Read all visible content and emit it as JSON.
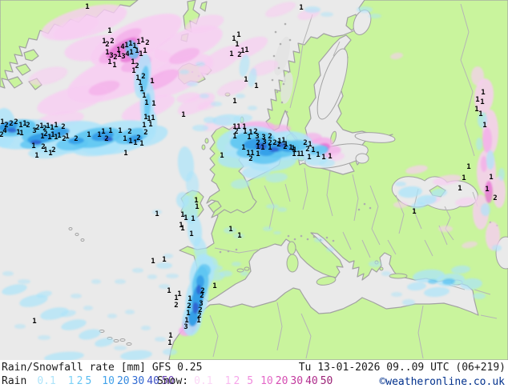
{
  "footer": {
    "title": "Rain/Snowfall rate [mm] GFS 0.25",
    "datetime": "Tu 13-01-2026 09..09 UTC (06+219)",
    "copyright": "©weatheronline.co.uk",
    "copyright_color": "#00308c",
    "rain_label": "Rain",
    "snow_label": "Snow:",
    "rain_scale": [
      {
        "value": "0.1",
        "color": "#aee4fa"
      },
      {
        "value": "1",
        "color": "#7fd3f7"
      },
      {
        "value": "2",
        "color": "#6cc9f5"
      },
      {
        "value": "5",
        "color": "#56bbf1"
      },
      {
        "value": "10",
        "color": "#42a3eb"
      },
      {
        "value": "20",
        "color": "#368ae0"
      },
      {
        "value": "30",
        "color": "#2f6ad2"
      },
      {
        "value": "40",
        "color": "#3b4ec5"
      },
      {
        "value": "50",
        "color": "#6238b2"
      }
    ],
    "snow_scale": [
      {
        "value": "0.1",
        "color": "#fbd7f6"
      },
      {
        "value": "1",
        "color": "#f9baf0"
      },
      {
        "value": "2",
        "color": "#f6a5ea"
      },
      {
        "value": "5",
        "color": "#f08bdd"
      },
      {
        "value": "10",
        "color": "#e569c9"
      },
      {
        "value": "20",
        "color": "#d54db2"
      },
      {
        "value": "30",
        "color": "#c2399e"
      },
      {
        "value": "40",
        "color": "#ae2b8b"
      },
      {
        "value": "50",
        "color": "#9b2377"
      }
    ]
  },
  "map": {
    "palette": {
      "sea": "#eaeaea",
      "land": "#c9f49d",
      "coast": "#a2a2a2",
      "border": "#b5b5b5",
      "highland": "#e2e2e2",
      "terrain": "#aeaeae",
      "snow_light": "#f8cdf2",
      "snow_mid": "#f4aeea",
      "snow_strong": "#e878d6",
      "rain_light": "#abe4fa",
      "rain_mid": "#5ec6f2",
      "rain_strong": "#2f9ae6",
      "rain_heavy": "#2e62d0"
    },
    "numbers": [
      [
        109,
        8,
        "1"
      ],
      [
        137,
        38,
        "1"
      ],
      [
        130,
        51,
        "1"
      ],
      [
        134,
        55,
        "2"
      ],
      [
        140,
        51,
        "2"
      ],
      [
        148,
        62,
        "1"
      ],
      [
        153,
        58,
        "4"
      ],
      [
        158,
        56,
        "1"
      ],
      [
        163,
        54,
        "1"
      ],
      [
        168,
        57,
        "1"
      ],
      [
        173,
        52,
        "1"
      ],
      [
        178,
        50,
        "1"
      ],
      [
        184,
        53,
        "2"
      ],
      [
        134,
        65,
        "1"
      ],
      [
        139,
        69,
        "3"
      ],
      [
        144,
        71,
        "2"
      ],
      [
        149,
        68,
        "1"
      ],
      [
        154,
        70,
        "3"
      ],
      [
        159,
        67,
        "4"
      ],
      [
        164,
        65,
        "1"
      ],
      [
        137,
        77,
        "1"
      ],
      [
        143,
        81,
        "1"
      ],
      [
        171,
        63,
        "1"
      ],
      [
        176,
        67,
        "1"
      ],
      [
        181,
        63,
        "1"
      ],
      [
        166,
        77,
        "1"
      ],
      [
        171,
        82,
        "2"
      ],
      [
        167,
        88,
        "1"
      ],
      [
        172,
        97,
        "1"
      ],
      [
        179,
        95,
        "2"
      ],
      [
        175,
        103,
        "1"
      ],
      [
        190,
        101,
        "1"
      ],
      [
        177,
        111,
        "1"
      ],
      [
        180,
        119,
        "1"
      ],
      [
        183,
        128,
        "1"
      ],
      [
        192,
        129,
        "1"
      ],
      [
        182,
        146,
        "1"
      ],
      [
        186,
        148,
        "1"
      ],
      [
        191,
        147,
        "1"
      ],
      [
        180,
        156,
        "1"
      ],
      [
        188,
        155,
        "1"
      ],
      [
        3,
        152,
        "1"
      ],
      [
        8,
        156,
        "2"
      ],
      [
        14,
        154,
        "2"
      ],
      [
        20,
        152,
        "2"
      ],
      [
        26,
        156,
        "1"
      ],
      [
        31,
        154,
        "1"
      ],
      [
        35,
        156,
        "2"
      ],
      [
        6,
        163,
        "4"
      ],
      [
        2,
        168,
        "2"
      ],
      [
        23,
        165,
        "1"
      ],
      [
        27,
        166,
        "1"
      ],
      [
        43,
        163,
        "3"
      ],
      [
        47,
        159,
        "2"
      ],
      [
        52,
        157,
        "1"
      ],
      [
        56,
        160,
        "2"
      ],
      [
        60,
        157,
        "1"
      ],
      [
        65,
        159,
        "1"
      ],
      [
        70,
        156,
        "1"
      ],
      [
        79,
        158,
        "2"
      ],
      [
        53,
        170,
        "1"
      ],
      [
        57,
        167,
        "2"
      ],
      [
        62,
        171,
        "1"
      ],
      [
        66,
        168,
        "1"
      ],
      [
        70,
        171,
        "1"
      ],
      [
        74,
        169,
        "1"
      ],
      [
        80,
        173,
        "2"
      ],
      [
        84,
        170,
        "1"
      ],
      [
        95,
        173,
        "2"
      ],
      [
        111,
        168,
        "1"
      ],
      [
        42,
        182,
        "1"
      ],
      [
        54,
        183,
        "2"
      ],
      [
        57,
        187,
        "1"
      ],
      [
        63,
        191,
        "1"
      ],
      [
        67,
        187,
        "2"
      ],
      [
        46,
        194,
        "1"
      ],
      [
        124,
        168,
        "1"
      ],
      [
        129,
        164,
        "1"
      ],
      [
        133,
        173,
        "2"
      ],
      [
        138,
        163,
        "1"
      ],
      [
        150,
        163,
        "1"
      ],
      [
        156,
        173,
        "1"
      ],
      [
        162,
        164,
        "2"
      ],
      [
        163,
        176,
        "1"
      ],
      [
        169,
        178,
        "1"
      ],
      [
        173,
        172,
        "2"
      ],
      [
        177,
        179,
        "1"
      ],
      [
        182,
        165,
        "2"
      ],
      [
        157,
        191,
        "1"
      ],
      [
        196,
        267,
        "1"
      ],
      [
        376,
        9,
        "1"
      ],
      [
        298,
        43,
        "1"
      ],
      [
        292,
        48,
        "1"
      ],
      [
        296,
        55,
        "1"
      ],
      [
        303,
        63,
        "1"
      ],
      [
        308,
        62,
        "1"
      ],
      [
        289,
        67,
        "1"
      ],
      [
        299,
        68,
        "2"
      ],
      [
        307,
        99,
        "1"
      ],
      [
        320,
        107,
        "1"
      ],
      [
        293,
        126,
        "1"
      ],
      [
        229,
        143,
        "1"
      ],
      [
        293,
        158,
        "1"
      ],
      [
        298,
        158,
        "1"
      ],
      [
        305,
        158,
        "1"
      ],
      [
        295,
        164,
        "2"
      ],
      [
        306,
        164,
        "1"
      ],
      [
        313,
        165,
        "1"
      ],
      [
        319,
        164,
        "2"
      ],
      [
        293,
        170,
        "1"
      ],
      [
        311,
        171,
        "1"
      ],
      [
        321,
        170,
        "3"
      ],
      [
        329,
        171,
        "3"
      ],
      [
        337,
        170,
        "2"
      ],
      [
        322,
        178,
        "2"
      ],
      [
        330,
        177,
        "3"
      ],
      [
        337,
        178,
        "2"
      ],
      [
        343,
        178,
        "2"
      ],
      [
        349,
        176,
        "1"
      ],
      [
        354,
        175,
        "1"
      ],
      [
        357,
        180,
        "1"
      ],
      [
        348,
        180,
        "2"
      ],
      [
        304,
        184,
        "1"
      ],
      [
        322,
        183,
        "1"
      ],
      [
        328,
        184,
        "1"
      ],
      [
        337,
        184,
        "1"
      ],
      [
        363,
        184,
        "1"
      ],
      [
        368,
        187,
        "1"
      ],
      [
        373,
        192,
        "1"
      ],
      [
        310,
        191,
        "1"
      ],
      [
        315,
        191,
        "1"
      ],
      [
        322,
        192,
        "1"
      ],
      [
        313,
        198,
        "2"
      ],
      [
        367,
        192,
        "1"
      ],
      [
        377,
        192,
        "1"
      ],
      [
        356,
        183,
        "2"
      ],
      [
        366,
        185,
        "1"
      ],
      [
        381,
        178,
        "2"
      ],
      [
        387,
        180,
        "1"
      ],
      [
        384,
        186,
        "2"
      ],
      [
        391,
        187,
        "1"
      ],
      [
        386,
        196,
        "1"
      ],
      [
        397,
        193,
        "1"
      ],
      [
        404,
        196,
        "1"
      ],
      [
        412,
        195,
        "1"
      ],
      [
        277,
        194,
        "1"
      ],
      [
        245,
        250,
        "1"
      ],
      [
        246,
        258,
        "1"
      ],
      [
        228,
        268,
        "1"
      ],
      [
        232,
        272,
        "1"
      ],
      [
        241,
        273,
        "1"
      ],
      [
        226,
        281,
        "1"
      ],
      [
        228,
        285,
        "1"
      ],
      [
        239,
        292,
        "1"
      ],
      [
        288,
        286,
        "1"
      ],
      [
        299,
        294,
        "1"
      ],
      [
        268,
        357,
        "1"
      ],
      [
        253,
        363,
        "2"
      ],
      [
        224,
        367,
        "1"
      ],
      [
        252,
        369,
        "2"
      ],
      [
        237,
        373,
        "1"
      ],
      [
        220,
        372,
        "1"
      ],
      [
        220,
        381,
        "2"
      ],
      [
        236,
        382,
        "2"
      ],
      [
        251,
        379,
        "3"
      ],
      [
        250,
        387,
        "2"
      ],
      [
        235,
        391,
        "1"
      ],
      [
        249,
        394,
        "2"
      ],
      [
        233,
        400,
        "1"
      ],
      [
        248,
        400,
        "1"
      ],
      [
        232,
        408,
        "3"
      ],
      [
        585,
        208,
        "1"
      ],
      [
        579,
        222,
        "1"
      ],
      [
        613,
        221,
        "1"
      ],
      [
        574,
        235,
        "1"
      ],
      [
        608,
        236,
        "1"
      ],
      [
        618,
        247,
        "2"
      ],
      [
        517,
        264,
        "1"
      ],
      [
        603,
        115,
        "1"
      ],
      [
        596,
        124,
        "1"
      ],
      [
        602,
        127,
        "1"
      ],
      [
        595,
        136,
        "1"
      ],
      [
        600,
        142,
        "1"
      ],
      [
        605,
        156,
        "1"
      ],
      [
        191,
        326,
        "1"
      ],
      [
        205,
        324,
        "1"
      ],
      [
        211,
        363,
        "1"
      ],
      [
        43,
        401,
        "1"
      ],
      [
        213,
        419,
        "1"
      ],
      [
        212,
        428,
        "1"
      ]
    ]
  }
}
